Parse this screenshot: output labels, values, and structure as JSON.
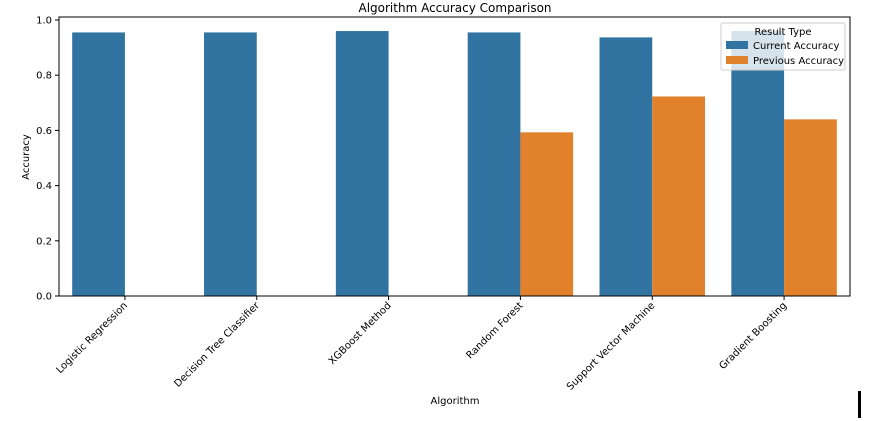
{
  "chart_data": {
    "type": "bar",
    "title": "Algorithm Accuracy Comparison",
    "xlabel": "Algorithm",
    "ylabel": "Accuracy",
    "categories": [
      "Logistic Regression",
      "Decision Tree Classifier",
      "XGBoost Method",
      "Random Forest",
      "Support Vector Machine",
      "Gradient Boosting"
    ],
    "series": [
      {
        "name": "Current Accuracy",
        "color": "#3274a1",
        "values": [
          0.955,
          0.955,
          0.96,
          0.955,
          0.937,
          0.96
        ]
      },
      {
        "name": "Previous Accuracy",
        "color": "#e1812c",
        "values": [
          null,
          null,
          null,
          0.593,
          0.723,
          0.64
        ]
      }
    ],
    "ylim": [
      0,
      1.0
    ],
    "yticks": [
      "0.0",
      "0.2",
      "0.4",
      "0.6",
      "0.8",
      "1.0"
    ],
    "grid": false,
    "legend": {
      "title": "Result Type",
      "placement": "top-right"
    }
  }
}
